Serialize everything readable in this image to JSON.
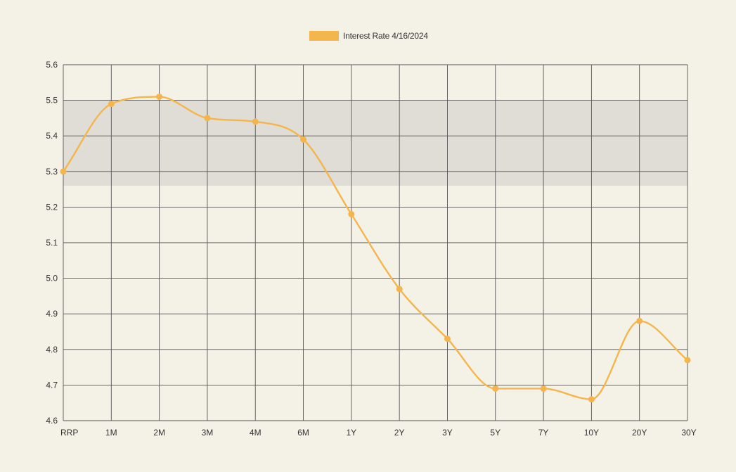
{
  "chart_data": {
    "type": "line",
    "categories": [
      "RRP",
      "1M",
      "2M",
      "3M",
      "4M",
      "6M",
      "1Y",
      "2Y",
      "3Y",
      "5Y",
      "7Y",
      "10Y",
      "20Y",
      "30Y"
    ],
    "series": [
      {
        "name": "Interest Rate 4/16/2024",
        "values": [
          5.3,
          5.49,
          5.51,
          5.45,
          5.44,
          5.39,
          5.18,
          4.97,
          4.83,
          4.69,
          4.69,
          4.66,
          4.88,
          4.77
        ],
        "color": "#f5b54d"
      }
    ],
    "ylim": [
      4.6,
      5.6
    ],
    "yticks": [
      "4.6",
      "4.7",
      "4.8",
      "4.9",
      "5.0",
      "5.1",
      "5.2",
      "5.3",
      "5.4",
      "5.5",
      "5.6"
    ],
    "shaded_band": [
      5.26,
      5.5
    ],
    "band_color": "#dfddd6",
    "grid": true,
    "grid_color": "#555555",
    "legend_position": "top-center",
    "background": "#f4f2e6"
  }
}
